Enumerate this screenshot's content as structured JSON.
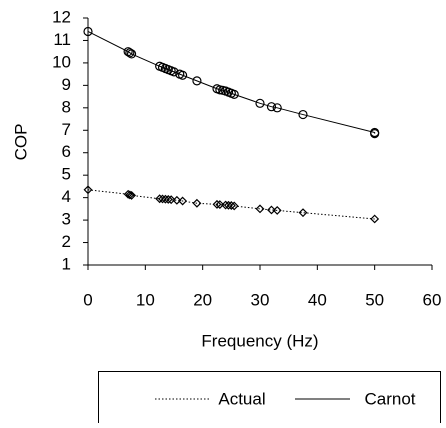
{
  "chart_data": {
    "type": "scatter",
    "x_label": "Frequency (Hz)",
    "y_label": "COP",
    "xlim": [
      0,
      60
    ],
    "xticks": [
      0,
      10,
      20,
      30,
      40,
      50,
      60
    ],
    "ylim": [
      1,
      12
    ],
    "yticks": [
      1,
      2,
      3,
      4,
      5,
      6,
      7,
      8,
      9,
      10,
      11,
      12
    ],
    "grid": false,
    "legend": "bottom",
    "series": [
      {
        "name": "Actual",
        "color": "#000000",
        "marker": "diamond",
        "dash": "dotted",
        "x": [
          0,
          7,
          7.3,
          7.6,
          12.5,
          13,
          13.5,
          14,
          14.5,
          15.5,
          16.5,
          19,
          22.5,
          23,
          24,
          24.5,
          25,
          25.5,
          30,
          32,
          33,
          37.5,
          50
        ],
        "values": [
          4.35,
          4.15,
          4.12,
          4.1,
          3.95,
          3.94,
          3.93,
          3.92,
          3.91,
          3.88,
          3.85,
          3.75,
          3.7,
          3.69,
          3.67,
          3.66,
          3.65,
          3.63,
          3.5,
          3.45,
          3.43,
          3.33,
          3.05
        ]
      },
      {
        "name": "Carnot",
        "color": "#000000",
        "marker": "circle",
        "dash": "solid",
        "x": [
          0,
          7,
          7.3,
          7.6,
          12.5,
          13,
          13.5,
          14,
          14.5,
          15,
          16,
          16.5,
          19,
          22.5,
          23,
          23.5,
          24,
          24.5,
          25,
          25.5,
          30,
          32,
          33,
          37.5,
          50,
          50
        ],
        "values": [
          11.4,
          10.5,
          10.45,
          10.4,
          9.85,
          9.8,
          9.75,
          9.7,
          9.65,
          9.6,
          9.5,
          9.45,
          9.2,
          8.85,
          8.8,
          8.78,
          8.75,
          8.7,
          8.65,
          8.6,
          8.2,
          8.05,
          8.0,
          7.7,
          6.9,
          6.85
        ]
      }
    ]
  }
}
